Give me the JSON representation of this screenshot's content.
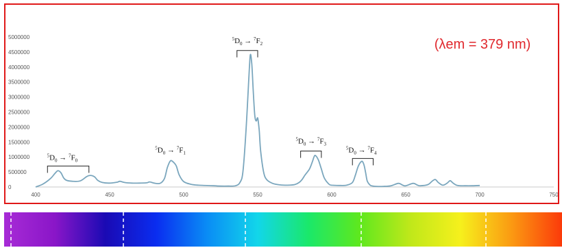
{
  "chart_data": {
    "type": "line",
    "title": "",
    "xlabel": "",
    "ylabel": "",
    "xlim": [
      400,
      750
    ],
    "ylim": [
      0,
      5000000
    ],
    "x_ticks": [
      400,
      450,
      500,
      550,
      600,
      650,
      700,
      750
    ],
    "y_ticks": [
      0,
      500000,
      1000000,
      1500000,
      2000000,
      2500000,
      3000000,
      3500000,
      4000000,
      4500000,
      5000000
    ],
    "grid": false,
    "line_color": "#7aa6bd",
    "annotation": {
      "text": "(λem = 379 nm)",
      "color": "#e0282d"
    },
    "series": [
      {
        "x": [
          400,
          405,
          410,
          413,
          415,
          417,
          419,
          421,
          425,
          430,
          434,
          436,
          438,
          440,
          442,
          445,
          450,
          455,
          457,
          460,
          465,
          470,
          475,
          477,
          480,
          484,
          487,
          489,
          491,
          493,
          495,
          497,
          500,
          505,
          510,
          520,
          525,
          530,
          535,
          538,
          540,
          542,
          544,
          545,
          546,
          547,
          548,
          549,
          550,
          551,
          552,
          554,
          556,
          560,
          565,
          570,
          575,
          578,
          580,
          582,
          585,
          587,
          588,
          589,
          591,
          593,
          595,
          598,
          600,
          605,
          610,
          614,
          616,
          618,
          620,
          621,
          622,
          623,
          624,
          626,
          628,
          630,
          635,
          640,
          645,
          648,
          650,
          655,
          658,
          660,
          665,
          668,
          670,
          672,
          675,
          678,
          680,
          682,
          685,
          690,
          695,
          700
        ],
        "y": [
          0,
          100000,
          280000,
          450000,
          540000,
          480000,
          300000,
          220000,
          190000,
          200000,
          330000,
          380000,
          380000,
          330000,
          220000,
          150000,
          130000,
          160000,
          190000,
          150000,
          130000,
          130000,
          140000,
          170000,
          130000,
          120000,
          280000,
          650000,
          870000,
          830000,
          700000,
          400000,
          180000,
          90000,
          60000,
          40000,
          30000,
          30000,
          40000,
          150000,
          500000,
          1800000,
          3600000,
          4400000,
          4100000,
          3200000,
          2400000,
          2200000,
          2300000,
          1900000,
          1200000,
          500000,
          250000,
          120000,
          70000,
          60000,
          80000,
          150000,
          250000,
          400000,
          600000,
          850000,
          1000000,
          1050000,
          900000,
          600000,
          300000,
          100000,
          60000,
          50000,
          60000,
          150000,
          400000,
          700000,
          850000,
          830000,
          700000,
          450000,
          200000,
          60000,
          30000,
          20000,
          20000,
          40000,
          120000,
          60000,
          40000,
          120000,
          60000,
          40000,
          80000,
          200000,
          250000,
          150000,
          60000,
          130000,
          210000,
          130000,
          50000,
          40000,
          40000,
          50000
        ]
      }
    ],
    "transitions": [
      {
        "sup1": "5",
        "base1": "D",
        "sub1": "0",
        "arrow": "→",
        "sup2": "7",
        "base2": "F",
        "sub2": "0",
        "bracket_x": [
          408,
          436
        ],
        "bracket_y": 700000,
        "label_x": 418,
        "label_y": 900000
      },
      {
        "sup1": "5",
        "base1": "D",
        "sub1": "0",
        "arrow": "→",
        "sup2": "7",
        "base2": "F",
        "sub2": "1",
        "bracket_x": null,
        "bracket_y": null,
        "label_x": 491,
        "label_y": 1150000
      },
      {
        "sup1": "5",
        "base1": "D",
        "sub1": "0",
        "arrow": "→",
        "sup2": "7",
        "base2": "F",
        "sub2": "2",
        "bracket_x": [
          536,
          550
        ],
        "bracket_y": 4550000,
        "label_x": 543,
        "label_y": 4800000
      },
      {
        "sup1": "5",
        "base1": "D",
        "sub1": "0",
        "arrow": "→",
        "sup2": "7",
        "base2": "F",
        "sub2": "3",
        "bracket_x": [
          579,
          593
        ],
        "bracket_y": 1200000,
        "label_x": 586,
        "label_y": 1450000
      },
      {
        "sup1": "5",
        "base1": "D",
        "sub1": "0",
        "arrow": "→",
        "sup2": "7",
        "base2": "F",
        "sub2": "4",
        "bracket_x": [
          614,
          628
        ],
        "bracket_y": 950000,
        "label_x": 620,
        "label_y": 1150000
      }
    ]
  },
  "spectrum_bar": {
    "colors": [
      "#a72bd6",
      "#8a16c8",
      "#1a0ab4",
      "#0a2df0",
      "#0a8cf5",
      "#12d6ea",
      "#1ae86a",
      "#5ee81e",
      "#bfe81a",
      "#f6f01c",
      "#fb9a12",
      "#fb3a0a"
    ],
    "divider_color": "#ffffff"
  }
}
